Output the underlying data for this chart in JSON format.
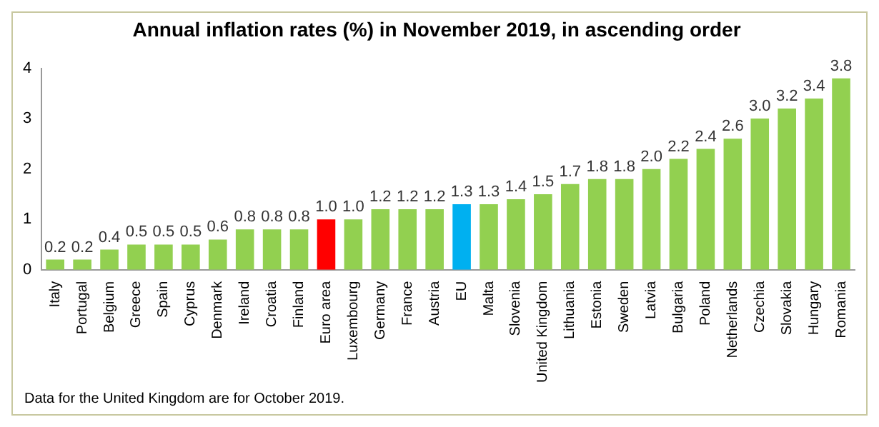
{
  "chart_data": {
    "type": "bar",
    "title": "Annual inflation rates (%) in November 2019, in ascending order",
    "categories": [
      "Italy",
      "Portugal",
      "Belgium",
      "Greece",
      "Spain",
      "Cyprus",
      "Denmark",
      "Ireland",
      "Croatia",
      "Finland",
      "Euro area",
      "Luxembourg",
      "Germany",
      "France",
      "Austria",
      "EU",
      "Malta",
      "Slovenia",
      "United Kingdom",
      "Lithuania",
      "Estonia",
      "Sweden",
      "Latvia",
      "Bulgaria",
      "Poland",
      "Netherlands",
      "Czechia",
      "Slovakia",
      "Hungary",
      "Romania"
    ],
    "values": [
      0.2,
      0.2,
      0.4,
      0.5,
      0.5,
      0.5,
      0.6,
      0.8,
      0.8,
      0.8,
      1.0,
      1.0,
      1.2,
      1.2,
      1.2,
      1.3,
      1.3,
      1.4,
      1.5,
      1.7,
      1.8,
      1.8,
      2.0,
      2.2,
      2.4,
      2.6,
      3.0,
      3.2,
      3.4,
      3.8
    ],
    "colors": [
      "#92d050",
      "#92d050",
      "#92d050",
      "#92d050",
      "#92d050",
      "#92d050",
      "#92d050",
      "#92d050",
      "#92d050",
      "#92d050",
      "#ff0000",
      "#92d050",
      "#92d050",
      "#92d050",
      "#92d050",
      "#00b0f0",
      "#92d050",
      "#92d050",
      "#92d050",
      "#92d050",
      "#92d050",
      "#92d050",
      "#92d050",
      "#92d050",
      "#92d050",
      "#92d050",
      "#92d050",
      "#92d050",
      "#92d050",
      "#92d050"
    ],
    "value_labels": [
      "0.2",
      "0.2",
      "0.4",
      "0.5",
      "0.5",
      "0.5",
      "0.6",
      "0.8",
      "0.8",
      "0.8",
      "1.0",
      "1.0",
      "1.2",
      "1.2",
      "1.2",
      "1.3",
      "1.3",
      "1.4",
      "1.5",
      "1.7",
      "1.8",
      "1.8",
      "2.0",
      "2.2",
      "2.4",
      "2.6",
      "3.0",
      "3.2",
      "3.4",
      "3.8"
    ],
    "ylim": [
      0,
      4
    ],
    "yticks": [
      0,
      1,
      2,
      3,
      4
    ],
    "grid": false,
    "legend": false,
    "annotations": [
      "Data for the United Kingdom are for October 2019."
    ]
  }
}
